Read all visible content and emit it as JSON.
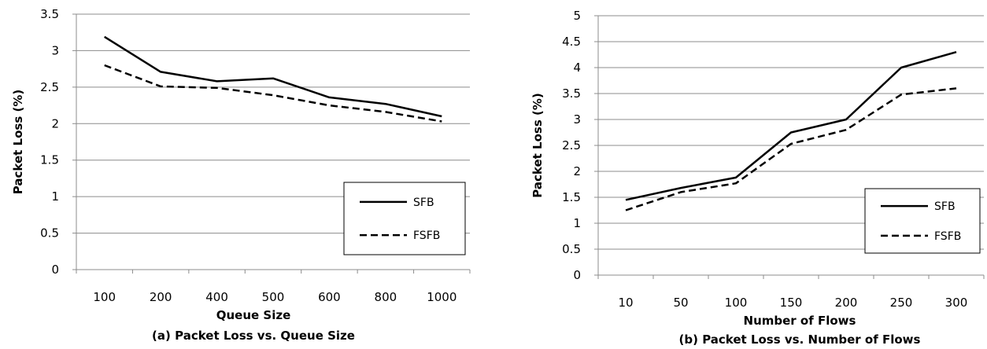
{
  "chart_data": [
    {
      "type": "line",
      "caption": "(a) Packet Loss vs. Queue Size",
      "xlabel": "Queue Size",
      "ylabel": "Packet Loss (%)",
      "categories": [
        "100",
        "200",
        "400",
        "500",
        "600",
        "800",
        "1000"
      ],
      "ylim": [
        0,
        3.5
      ],
      "yticks": [
        "0",
        "0.5",
        "1",
        "1.5",
        "2",
        "2.5",
        "3",
        "3.5"
      ],
      "grid": true,
      "legend_position": "right",
      "series": [
        {
          "name": "SFB",
          "style": "solid",
          "values": [
            3.19,
            2.71,
            2.58,
            2.62,
            2.36,
            2.27,
            2.1
          ]
        },
        {
          "name": "FSFB",
          "style": "dashed",
          "values": [
            2.8,
            2.51,
            2.49,
            2.39,
            2.25,
            2.16,
            2.03
          ]
        }
      ]
    },
    {
      "type": "line",
      "caption": "(b) Packet Loss vs. Number of Flows",
      "xlabel": "Number of Flows",
      "ylabel": "Packet Loss (%)",
      "categories": [
        "10",
        "50",
        "100",
        "150",
        "200",
        "250",
        "300"
      ],
      "ylim": [
        0,
        5
      ],
      "yticks": [
        "0",
        "0.5",
        "1",
        "1.5",
        "2",
        "2.5",
        "3",
        "3.5",
        "4",
        "4.5",
        "5"
      ],
      "grid": true,
      "legend_position": "right",
      "series": [
        {
          "name": "SFB",
          "style": "solid",
          "values": [
            1.45,
            1.68,
            1.88,
            2.75,
            3.0,
            4.0,
            4.3
          ]
        },
        {
          "name": "FSFB",
          "style": "dashed",
          "values": [
            1.25,
            1.6,
            1.77,
            2.53,
            2.8,
            3.48,
            3.6
          ]
        }
      ]
    }
  ]
}
